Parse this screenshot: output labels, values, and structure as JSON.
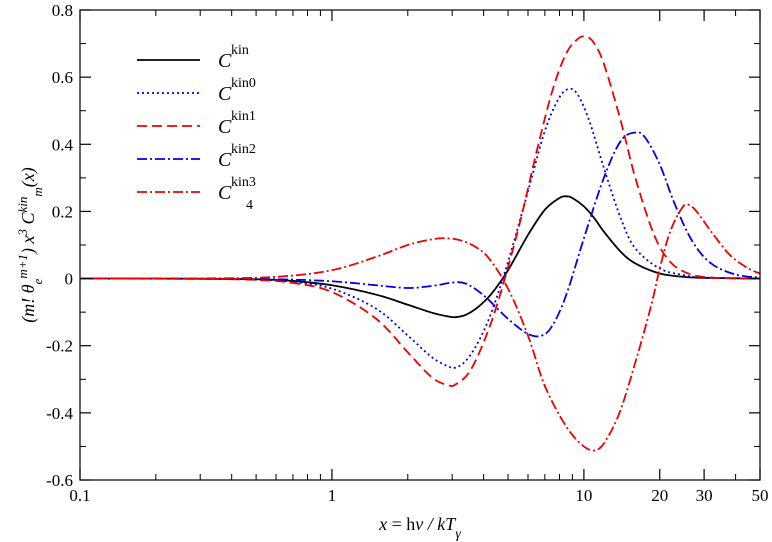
{
  "chart_data": {
    "type": "line",
    "x_scale": "log",
    "xlim": [
      0.1,
      50
    ],
    "ylim": [
      -0.6,
      0.8
    ],
    "x_ticks": [
      {
        "value": 0.1,
        "label": "0.1"
      },
      {
        "value": 1,
        "label": "1"
      },
      {
        "value": 10,
        "label": "10"
      },
      {
        "value": 20,
        "label": "20"
      },
      {
        "value": 30,
        "label": "30"
      },
      {
        "value": 50,
        "label": "50"
      }
    ],
    "y_ticks": [
      {
        "value": -0.6,
        "label": "-0.6"
      },
      {
        "value": -0.4,
        "label": "-0.4"
      },
      {
        "value": -0.2,
        "label": "-0.2"
      },
      {
        "value": 0,
        "label": "0"
      },
      {
        "value": 0.2,
        "label": "0.2"
      },
      {
        "value": 0.4,
        "label": "0.4"
      },
      {
        "value": 0.6,
        "label": "0.6"
      },
      {
        "value": 0.8,
        "label": "0.8"
      }
    ],
    "xlabel": {
      "x": "x",
      "eq": " = h",
      "nu": "ν",
      "slash": " / kT",
      "gamma": "γ"
    },
    "ylabel": {
      "open": "(m! θ",
      "sub_e": "e",
      "sup_m1": "m+1",
      "close": ")  x",
      "sup_3": "3",
      "c": "  C",
      "sup_kin": "kin",
      "sub_m": "m",
      "arg": "(x)"
    },
    "legend_position": "top-left",
    "series": [
      {
        "legend": {
          "c": "C",
          "sup": "kin",
          "sub": ""
        },
        "color": "#000000",
        "dash": "none",
        "points": [
          [
            0.1,
            0
          ],
          [
            0.3,
            -0.0005
          ],
          [
            0.5,
            -0.002
          ],
          [
            0.7,
            -0.007
          ],
          [
            1.0,
            -0.02
          ],
          [
            1.5,
            -0.048
          ],
          [
            2.0,
            -0.078
          ],
          [
            2.5,
            -0.102
          ],
          [
            2.9,
            -0.113
          ],
          [
            3.1,
            -0.115
          ],
          [
            3.4,
            -0.108
          ],
          [
            3.8,
            -0.085
          ],
          [
            4.3,
            -0.045
          ],
          [
            5.0,
            0.025
          ],
          [
            6.0,
            0.13
          ],
          [
            7.0,
            0.205
          ],
          [
            8.0,
            0.24
          ],
          [
            8.5,
            0.245
          ],
          [
            9.0,
            0.24
          ],
          [
            10.0,
            0.215
          ],
          [
            11.0,
            0.18
          ],
          [
            12.0,
            0.14
          ],
          [
            14.0,
            0.08
          ],
          [
            16.0,
            0.045
          ],
          [
            20.0,
            0.015
          ],
          [
            25.0,
            0.005
          ],
          [
            30.0,
            0.002
          ],
          [
            50.0,
            0
          ]
        ]
      },
      {
        "legend": {
          "c": "C",
          "sup": "kin",
          "sub": "0"
        },
        "color": "#0000ee",
        "dash": "2,3",
        "points": [
          [
            0.1,
            0
          ],
          [
            0.3,
            -0.0005
          ],
          [
            0.5,
            -0.003
          ],
          [
            0.7,
            -0.01
          ],
          [
            1.0,
            -0.03
          ],
          [
            1.5,
            -0.09
          ],
          [
            2.0,
            -0.17
          ],
          [
            2.5,
            -0.235
          ],
          [
            2.9,
            -0.262
          ],
          [
            3.1,
            -0.265
          ],
          [
            3.4,
            -0.245
          ],
          [
            3.8,
            -0.19
          ],
          [
            4.3,
            -0.1
          ],
          [
            5.0,
            0.05
          ],
          [
            6.0,
            0.26
          ],
          [
            7.0,
            0.44
          ],
          [
            8.0,
            0.54
          ],
          [
            8.8,
            0.565
          ],
          [
            9.5,
            0.545
          ],
          [
            10.5,
            0.47
          ],
          [
            12.0,
            0.33
          ],
          [
            14.0,
            0.18
          ],
          [
            16.0,
            0.09
          ],
          [
            20.0,
            0.03
          ],
          [
            25.0,
            0.01
          ],
          [
            30.0,
            0.003
          ],
          [
            50.0,
            0
          ]
        ]
      },
      {
        "legend": {
          "c": "C",
          "sup": "kin",
          "sub": "1"
        },
        "color": "#ee0000",
        "dash": "10,5",
        "points": [
          [
            0.1,
            0
          ],
          [
            0.3,
            -0.001
          ],
          [
            0.5,
            -0.004
          ],
          [
            0.7,
            -0.013
          ],
          [
            1.0,
            -0.04
          ],
          [
            1.5,
            -0.12
          ],
          [
            2.0,
            -0.22
          ],
          [
            2.5,
            -0.295
          ],
          [
            2.9,
            -0.318
          ],
          [
            3.1,
            -0.315
          ],
          [
            3.5,
            -0.28
          ],
          [
            4.0,
            -0.19
          ],
          [
            4.6,
            -0.06
          ],
          [
            5.5,
            0.15
          ],
          [
            6.5,
            0.38
          ],
          [
            7.5,
            0.56
          ],
          [
            8.5,
            0.67
          ],
          [
            9.5,
            0.715
          ],
          [
            10.3,
            0.72
          ],
          [
            11.0,
            0.7
          ],
          [
            12.0,
            0.64
          ],
          [
            14.0,
            0.47
          ],
          [
            16.0,
            0.3
          ],
          [
            19.0,
            0.13
          ],
          [
            22.0,
            0.05
          ],
          [
            26.0,
            0.015
          ],
          [
            32.0,
            0.003
          ],
          [
            50.0,
            0
          ]
        ]
      },
      {
        "legend": {
          "c": "C",
          "sup": "kin",
          "sub": "2"
        },
        "color": "#0000ee",
        "dash": "10,3,2,3",
        "points": [
          [
            0.1,
            0
          ],
          [
            0.3,
            -0.0002
          ],
          [
            0.6,
            -0.002
          ],
          [
            1.0,
            -0.008
          ],
          [
            1.5,
            -0.02
          ],
          [
            2.0,
            -0.028
          ],
          [
            2.5,
            -0.022
          ],
          [
            3.0,
            -0.012
          ],
          [
            3.4,
            -0.015
          ],
          [
            4.0,
            -0.05
          ],
          [
            5.0,
            -0.12
          ],
          [
            6.0,
            -0.165
          ],
          [
            6.8,
            -0.17
          ],
          [
            7.5,
            -0.14
          ],
          [
            8.5,
            -0.05
          ],
          [
            10.0,
            0.12
          ],
          [
            12.0,
            0.3
          ],
          [
            14.0,
            0.41
          ],
          [
            16.0,
            0.435
          ],
          [
            17.5,
            0.42
          ],
          [
            20.0,
            0.34
          ],
          [
            23.0,
            0.22
          ],
          [
            27.0,
            0.11
          ],
          [
            32.0,
            0.045
          ],
          [
            40.0,
            0.012
          ],
          [
            50.0,
            0.003
          ]
        ]
      },
      {
        "legend": {
          "c": "C",
          "sup": "kin",
          "sub": "3"
        },
        "sub_low": "4",
        "color": "#ee0000",
        "dash": "10,3,2,3",
        "points": [
          [
            0.1,
            0
          ],
          [
            0.3,
            0.0005
          ],
          [
            0.6,
            0.005
          ],
          [
            1.0,
            0.025
          ],
          [
            1.5,
            0.065
          ],
          [
            2.0,
            0.1
          ],
          [
            2.5,
            0.117
          ],
          [
            2.8,
            0.12
          ],
          [
            3.2,
            0.115
          ],
          [
            3.7,
            0.095
          ],
          [
            4.2,
            0.06
          ],
          [
            5.0,
            -0.03
          ],
          [
            6.0,
            -0.17
          ],
          [
            7.0,
            -0.32
          ],
          [
            8.5,
            -0.44
          ],
          [
            10.0,
            -0.5
          ],
          [
            11.3,
            -0.51
          ],
          [
            12.5,
            -0.47
          ],
          [
            14.0,
            -0.39
          ],
          [
            16.0,
            -0.25
          ],
          [
            18.5,
            -0.08
          ],
          [
            20.0,
            0.03
          ],
          [
            22.0,
            0.14
          ],
          [
            24.5,
            0.21
          ],
          [
            26.0,
            0.22
          ],
          [
            28.0,
            0.2
          ],
          [
            32.0,
            0.14
          ],
          [
            38.0,
            0.07
          ],
          [
            45.0,
            0.03
          ],
          [
            50.0,
            0.015
          ]
        ]
      }
    ]
  }
}
